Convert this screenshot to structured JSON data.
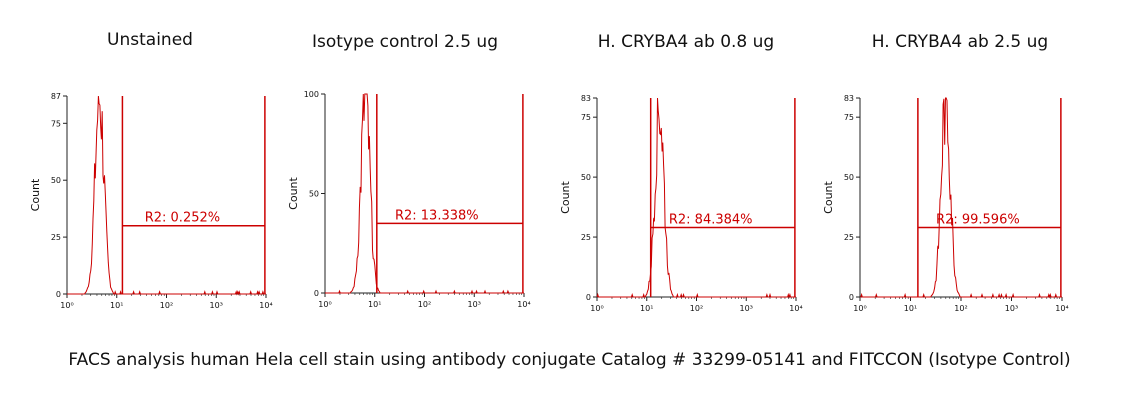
{
  "caption": "FACS analysis human Hela cell stain using antibody conjugate Catalog # 33299-05141 and FITCCON (Isotype Control)",
  "colors": {
    "data": "#cc0000",
    "axis": "#222222",
    "text": "#111111"
  },
  "chart_data": [
    {
      "type": "histogram",
      "title": "Unstained",
      "ylabel": "Count",
      "ylim": [
        0,
        87
      ],
      "yticks": [
        0,
        25,
        50,
        75,
        87
      ],
      "xscale": "log",
      "xlim": [
        1,
        10000
      ],
      "xticks": [
        "10⁰",
        "10¹",
        "10²",
        "10³",
        "10⁴"
      ],
      "gate": {
        "name": "R2",
        "label": "R2: 0.252%",
        "percent": 0.252,
        "x_range": [
          13,
          9500
        ],
        "y": 30
      },
      "peak": {
        "center": 4.5,
        "height": 86
      }
    },
    {
      "type": "histogram",
      "title": "Isotype control 2.5 ug",
      "ylabel": "Count",
      "ylim": [
        0,
        100
      ],
      "yticks": [
        0,
        50,
        100
      ],
      "xscale": "log",
      "xlim": [
        1,
        10000
      ],
      "xticks": [
        "10⁰",
        "10¹",
        "10²",
        "10³",
        "10⁴"
      ],
      "gate": {
        "name": "R2",
        "label": "R2: 13.338%",
        "percent": 13.338,
        "x_range": [
          11,
          9500
        ],
        "y": 35
      },
      "peak": {
        "center": 6.5,
        "height": 98
      }
    },
    {
      "type": "histogram",
      "title": "H. CRYBA4 ab 0.8 ug",
      "ylabel": "Count",
      "ylim": [
        0,
        83
      ],
      "yticks": [
        0,
        25,
        50,
        75,
        83
      ],
      "xscale": "log",
      "xlim": [
        1,
        10000
      ],
      "xticks": [
        "10⁰",
        "10¹",
        "10²",
        "10³",
        "10⁴"
      ],
      "gate": {
        "name": "R2",
        "label": "R2: 84.384%",
        "percent": 84.384,
        "x_range": [
          12,
          9500
        ],
        "y": 29
      },
      "peak": {
        "center": 18,
        "height": 80
      }
    },
    {
      "type": "histogram",
      "title": "H. CRYBA4 ab 2.5 ug",
      "ylabel": "Count",
      "ylim": [
        0,
        83
      ],
      "yticks": [
        0,
        25,
        50,
        75,
        83
      ],
      "xscale": "log",
      "xlim": [
        1,
        10000
      ],
      "xticks": [
        "10⁰",
        "10¹",
        "10²",
        "10³",
        "10⁴"
      ],
      "gate": {
        "name": "R2",
        "label": "R2: 99.596%",
        "percent": 99.596,
        "x_range": [
          14,
          9500
        ],
        "y": 29
      },
      "peak": {
        "center": 50,
        "height": 82
      }
    }
  ]
}
